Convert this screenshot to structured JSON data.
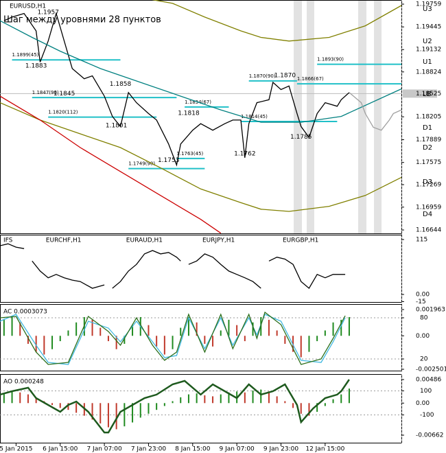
{
  "chart_data": [
    {
      "type": "line",
      "title": "EURUSD,H1",
      "subtitle": "Шаг между уровнями 28 пунктов",
      "xlim": [
        0,
        100
      ],
      "xticks": [
        {
          "value": 4,
          "label": "5 Jan 2015"
        },
        {
          "value": 15,
          "label": "6 Jan 15:00"
        },
        {
          "value": 26,
          "label": "7 Jan 07:00"
        },
        {
          "value": 37,
          "label": "7 Jan 23:00"
        },
        {
          "value": 48,
          "label": "8 Jan 15:00"
        },
        {
          "value": 59,
          "label": "9 Jan 07:00"
        },
        {
          "value": 70,
          "label": "9 Jan 23:00"
        },
        {
          "value": 81,
          "label": "12 Jan 15:00"
        }
      ],
      "ylim": [
        1.16597,
        1.19816
      ],
      "yticks": [
        1.19759,
        1.19445,
        1.19132,
        1.18824,
        1.18205,
        1.17889,
        1.17575,
        1.17269,
        1.16959,
        1.16644
      ],
      "current_price": 1.18525,
      "series": [
        {
          "color": "#000000",
          "x": [
            1,
            3,
            6,
            9,
            10,
            12,
            14,
            16,
            18,
            21,
            23,
            26,
            28,
            30,
            32,
            34,
            37,
            39,
            42,
            44,
            45,
            48,
            50,
            53,
            56,
            58,
            60,
            61,
            62,
            64,
            67,
            68,
            70,
            72,
            74,
            75,
            77,
            79,
            81,
            84,
            85,
            87
          ],
          "values": [
            1.1953,
            1.1958,
            1.1963,
            1.1939,
            1.1896,
            1.1925,
            1.1963,
            1.1925,
            1.1887,
            1.1873,
            1.1877,
            1.1849,
            1.1821,
            1.1807,
            1.1854,
            1.184,
            1.1825,
            1.1816,
            1.1783,
            1.1754,
            1.1783,
            1.1802,
            1.1811,
            1.1802,
            1.1811,
            1.1816,
            1.1816,
            1.1764,
            1.1811,
            1.184,
            1.1844,
            1.1868,
            1.1858,
            1.1863,
            1.1825,
            1.1807,
            1.1792,
            1.1825,
            1.184,
            1.1835,
            1.1844,
            1.1854
          ]
        },
        {
          "color": "#808000",
          "x": [
            38,
            43,
            51,
            60,
            65,
            72,
            82,
            91,
            100
          ],
          "values": [
            1.1982,
            1.1977,
            1.1958,
            1.1939,
            1.193,
            1.1925,
            1.193,
            1.1946,
            1.1974
          ]
        },
        {
          "color": "#808000",
          "x": [
            0,
            10,
            20,
            30,
            40,
            50,
            60,
            65,
            72,
            82,
            91,
            100
          ],
          "values": [
            1.184,
            1.1816,
            1.1797,
            1.1778,
            1.175,
            1.1721,
            1.1702,
            1.1693,
            1.169,
            1.1697,
            1.1712,
            1.1737
          ]
        },
        {
          "color": "#008080",
          "x": [
            0,
            8,
            15,
            25,
            35,
            45,
            55,
            65,
            75,
            85,
            100
          ],
          "values": [
            1.1953,
            1.193,
            1.1911,
            1.1887,
            1.1868,
            1.1849,
            1.183,
            1.1813,
            1.1813,
            1.1821,
            1.1859
          ]
        },
        {
          "color": "#cc0000",
          "x": [
            0,
            10,
            20,
            30,
            40,
            50,
            55
          ],
          "values": [
            1.1849,
            1.1816,
            1.1778,
            1.1745,
            1.1712,
            1.1679,
            1.166
          ]
        },
        {
          "color": "#a0a0a0",
          "x": [
            87,
            90,
            91,
            93,
            95,
            97,
            98,
            100
          ],
          "values": [
            1.1854,
            1.184,
            1.1825,
            1.1806,
            1.1802,
            1.1816,
            1.1825,
            1.183
          ]
        }
      ],
      "annotations": [
        {
          "label": "1.1957",
          "x": 12,
          "y": 1.1957
        },
        {
          "label": "1.1883",
          "x": 9,
          "y": 1.1883
        },
        {
          "label": "1.1845",
          "x": 16,
          "y": 1.1845
        },
        {
          "label": "1.1858",
          "x": 30,
          "y": 1.1858
        },
        {
          "label": "1.1801",
          "x": 29,
          "y": 1.1801
        },
        {
          "label": "1.1818",
          "x": 47,
          "y": 1.1818
        },
        {
          "label": "1.1753",
          "x": 42,
          "y": 1.1753
        },
        {
          "label": "1.1762",
          "x": 61,
          "y": 1.1762
        },
        {
          "label": "1.1870",
          "x": 71,
          "y": 1.187
        },
        {
          "label": "1.1785",
          "x": 75,
          "y": 1.1785
        }
      ],
      "levels": [
        {
          "label": "1.1899(45)",
          "x": 3,
          "x_end": 30,
          "y": 1.1899
        },
        {
          "label": "1.1847(90)",
          "x": 8,
          "x_end": 44,
          "y": 1.1847
        },
        {
          "label": "1.1820(112)",
          "x": 12,
          "x_end": 39,
          "y": 1.182
        },
        {
          "label": "1.1834(67)",
          "x": 46,
          "x_end": 57,
          "y": 1.1834
        },
        {
          "label": "1.1763(45)",
          "x": 44,
          "x_end": 51,
          "y": 1.1763
        },
        {
          "label": "1.1749(90)",
          "x": 32,
          "x_end": 51,
          "y": 1.1749
        },
        {
          "label": "1.1870(90)",
          "x": 62,
          "x_end": 74,
          "y": 1.187
        },
        {
          "label": "1.1814(45)",
          "x": 60,
          "x_end": 84,
          "y": 1.1814
        },
        {
          "label": "1.1893(90)",
          "x": 79,
          "x_end": 100,
          "y": 1.1893
        },
        {
          "label": "1.1866(67)",
          "x": 74,
          "x_end": 100,
          "y": 1.1866
        }
      ],
      "zones": [
        {
          "label": "U3",
          "y": 1.19693
        },
        {
          "label": "U2",
          "y": 1.19248
        },
        {
          "label": "U1",
          "y": 1.18964
        },
        {
          "label": "LB",
          "y": 1.18519
        },
        {
          "label": "D1",
          "y": 1.18055
        },
        {
          "label": "D2",
          "y": 1.17781
        },
        {
          "label": "D3",
          "y": 1.17307
        },
        {
          "label": "D4",
          "y": 1.16862
        }
      ]
    },
    {
      "type": "line",
      "title": "IFS",
      "xlim": [
        0,
        100
      ],
      "ylim": [
        -15.8,
        123.6
      ],
      "yticks": [
        115,
        {
          "value": 0,
          "label": "0.00"
        },
        -15
      ],
      "series": [
        {
          "color": "#000000",
          "x": [
            0,
            2,
            4,
            6
          ],
          "values": [
            102,
            106,
            99,
            96
          ]
        },
        {
          "name": "EURCHF,H1",
          "color": "#000000",
          "x": [
            8,
            10,
            12,
            14,
            16,
            18,
            20,
            23,
            26
          ],
          "values": [
            70,
            49,
            35,
            42,
            35,
            30,
            27,
            13,
            20
          ]
        },
        {
          "name": "EURAUD,H1",
          "color": "#000000",
          "x": [
            28,
            30,
            32,
            34,
            36,
            38,
            40,
            42,
            44,
            45
          ],
          "values": [
            13,
            27,
            49,
            63,
            85,
            92,
            85,
            88,
            78,
            70
          ]
        },
        {
          "name": "EURJPY,H1",
          "color": "#000000",
          "x": [
            47,
            49,
            51,
            53,
            55,
            57,
            59,
            61,
            63,
            65
          ],
          "values": [
            63,
            70,
            85,
            78,
            63,
            49,
            42,
            35,
            27,
            13
          ]
        },
        {
          "name": "EURGBP,H1",
          "color": "#000000",
          "x": [
            67,
            69,
            71,
            73,
            75,
            77,
            79,
            81,
            83,
            86
          ],
          "values": [
            70,
            78,
            74,
            63,
            27,
            13,
            42,
            35,
            42,
            42
          ]
        }
      ]
    },
    {
      "type": "combo",
      "title": "AC 0.0003073",
      "xlim": [
        0,
        100
      ],
      "ylim": [
        -0.002604,
        0.002322
      ],
      "yticks": [
        0.001963,
        {
          "value": 0,
          "label": "0.00"
        },
        -0.002501
      ],
      "y2lim": [
        3,
        99
      ],
      "y2ticks": [
        80,
        20
      ],
      "series": [
        {
          "type": "bar",
          "color": "#1f8a1f",
          "down_color": "#c0392b",
          "x": [
            1,
            3,
            5,
            7,
            9,
            11,
            13,
            15,
            17,
            19,
            21,
            23,
            25,
            27,
            29,
            31,
            33,
            35,
            37,
            39,
            41,
            43,
            45,
            47,
            49,
            51,
            53,
            55,
            57,
            59,
            61,
            63,
            65,
            67,
            69,
            71,
            73,
            75,
            77,
            79,
            81,
            83,
            85,
            87
          ],
          "values": [
            0.0012,
            0.0014,
            0.001,
            -0.0006,
            -0.0012,
            -0.0014,
            -0.001,
            -0.0004,
            0.0004,
            0.001,
            0.0014,
            0.0012,
            0.0006,
            -0.0004,
            -0.001,
            -0.0006,
            0.0008,
            0.0014,
            0.0008,
            -0.0008,
            -0.0014,
            -0.001,
            0.0006,
            0.0014,
            0.001,
            -0.0006,
            -0.0008,
            0.0004,
            0.0012,
            0.0008,
            -0.0004,
            0.001,
            0.0014,
            0.0012,
            0.0004,
            -0.0006,
            -0.0012,
            -0.0016,
            -0.0012,
            -0.0004,
            0.0004,
            0.001,
            0.0012,
            0.0014
          ]
        },
        {
          "type": "line",
          "axis": "y2",
          "color": "#40b8e0",
          "x": [
            0,
            4,
            9,
            12,
            17,
            22,
            27,
            30,
            34,
            38,
            41,
            44,
            47,
            51,
            55,
            58,
            62,
            64,
            66,
            70,
            75,
            80,
            83,
            86
          ],
          "values": [
            75,
            85,
            40,
            15,
            12,
            75,
            65,
            45,
            75,
            45,
            22,
            25,
            80,
            35,
            80,
            40,
            80,
            55,
            85,
            75,
            18,
            15,
            45,
            80
          ]
        },
        {
          "type": "line",
          "axis": "y2",
          "color": "#2a6e1a",
          "x": [
            0,
            4,
            9,
            12,
            17,
            22,
            27,
            30,
            34,
            38,
            41,
            44,
            47,
            51,
            55,
            58,
            62,
            64,
            66,
            70,
            75,
            80,
            83,
            86
          ],
          "values": [
            80,
            82,
            30,
            12,
            15,
            82,
            60,
            40,
            80,
            40,
            18,
            30,
            85,
            30,
            85,
            35,
            85,
            50,
            88,
            70,
            12,
            20,
            50,
            83
          ]
        }
      ]
    },
    {
      "type": "combo",
      "title": "AO 0.000248",
      "xlim": [
        0,
        100
      ],
      "ylim": [
        -0.008179,
        0.005852
      ],
      "yticks": [
        0.00486,
        {
          "value": 0,
          "label": "0.00"
        },
        -0.00662
      ],
      "y2lim": [
        -331,
        234
      ],
      "y2ticks": [
        100,
        -100
      ],
      "series": [
        {
          "type": "bar",
          "color": "#1f8a1f",
          "down_color": "#c0392b",
          "x": [
            1,
            3,
            5,
            7,
            9,
            11,
            13,
            15,
            17,
            19,
            21,
            23,
            25,
            27,
            29,
            31,
            33,
            35,
            37,
            39,
            41,
            43,
            45,
            47,
            49,
            51,
            53,
            55,
            57,
            59,
            61,
            63,
            65,
            67,
            69,
            71,
            73,
            75,
            77,
            79,
            81,
            83,
            85,
            87
          ],
          "values": [
            0.002,
            0.0025,
            0.0022,
            0.0018,
            0.001,
            0.0004,
            -0.0004,
            -0.001,
            -0.0014,
            -0.002,
            -0.0026,
            -0.0034,
            -0.0042,
            -0.005,
            -0.0054,
            -0.0048,
            -0.004,
            -0.003,
            -0.0022,
            -0.0014,
            -0.0006,
            0.0004,
            0.0012,
            0.0018,
            0.002,
            0.0016,
            0.0014,
            0.0018,
            0.0022,
            0.0024,
            0.0022,
            0.0026,
            0.0028,
            0.0024,
            0.0014,
            0.0004,
            -0.001,
            -0.0022,
            -0.0026,
            -0.0018,
            -0.0006,
            0.0008,
            0.0018,
            0.003
          ]
        },
        {
          "type": "line",
          "axis": "y2",
          "color": "#1e5a1e",
          "width": 2.5,
          "x": [
            0,
            3,
            7,
            9,
            12,
            15,
            17,
            19,
            22,
            26,
            27,
            30,
            33,
            36,
            39,
            43,
            46,
            50,
            53,
            56,
            59,
            62,
            65,
            68,
            71,
            74,
            75,
            78,
            81,
            84,
            85,
            87
          ],
          "values": [
            69,
            97,
            126,
            40,
            -17,
            -74,
            -17,
            11,
            -74,
            -246,
            -246,
            -74,
            -17,
            40,
            69,
            154,
            183,
            69,
            154,
            97,
            40,
            154,
            69,
            97,
            154,
            -17,
            -160,
            -46,
            40,
            69,
            97,
            194
          ]
        }
      ]
    }
  ]
}
